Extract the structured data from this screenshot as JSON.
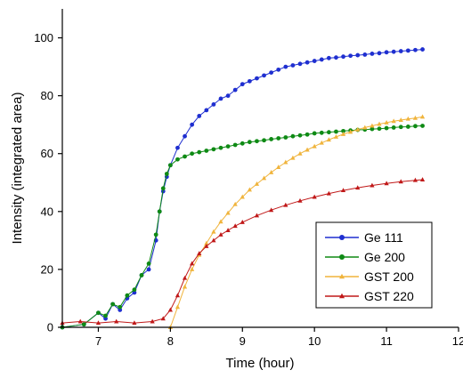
{
  "chart_data": {
    "type": "scatter",
    "title": "",
    "xlabel": "Time (hour)",
    "ylabel": "Intensity (integrated area)",
    "xlim": [
      6.5,
      12
    ],
    "ylim": [
      0,
      110
    ],
    "xticks": [
      "7",
      "8",
      "9",
      "10",
      "11",
      "12"
    ],
    "yticks": [
      "0",
      "20",
      "40",
      "60",
      "80",
      "100"
    ],
    "grid": false,
    "legend_position": "bottom-right",
    "series": [
      {
        "name": "Ge 111",
        "color": "#1f2fd0",
        "marker": "circle",
        "x": [
          6.5,
          6.8,
          7.0,
          7.1,
          7.2,
          7.3,
          7.4,
          7.5,
          7.6,
          7.7,
          7.8,
          7.85,
          7.9,
          7.95,
          8.0,
          8.1,
          8.2,
          8.3,
          8.4,
          8.5,
          8.6,
          8.7,
          8.8,
          8.9,
          9.0,
          9.1,
          9.2,
          9.3,
          9.4,
          9.5,
          9.6,
          9.7,
          9.8,
          9.9,
          10.0,
          10.1,
          10.2,
          10.3,
          10.4,
          10.5,
          10.6,
          10.7,
          10.8,
          10.9,
          11.0,
          11.1,
          11.2,
          11.3,
          11.4,
          11.5
        ],
        "y": [
          0,
          1,
          5,
          3,
          8,
          6,
          10,
          12,
          18,
          20,
          30,
          40,
          47,
          52,
          56,
          62,
          66,
          70,
          73,
          75,
          77,
          79,
          80,
          82,
          84,
          85,
          86,
          87,
          88,
          89,
          90,
          90.5,
          91,
          91.5,
          92,
          92.5,
          93,
          93.2,
          93.5,
          93.8,
          94,
          94.2,
          94.5,
          94.7,
          95,
          95.2,
          95.4,
          95.6,
          95.8,
          96
        ]
      },
      {
        "name": "Ge 200",
        "color": "#0e8a14",
        "marker": "circle",
        "x": [
          6.5,
          6.8,
          7.0,
          7.1,
          7.2,
          7.3,
          7.4,
          7.5,
          7.6,
          7.7,
          7.8,
          7.85,
          7.9,
          7.95,
          8.0,
          8.1,
          8.2,
          8.3,
          8.4,
          8.5,
          8.6,
          8.7,
          8.8,
          8.9,
          9.0,
          9.1,
          9.2,
          9.3,
          9.4,
          9.5,
          9.6,
          9.7,
          9.8,
          9.9,
          10.0,
          10.1,
          10.2,
          10.3,
          10.4,
          10.5,
          10.6,
          10.7,
          10.8,
          10.9,
          11.0,
          11.1,
          11.2,
          11.3,
          11.4,
          11.5
        ],
        "y": [
          0,
          1,
          5,
          4,
          8,
          7,
          11,
          13,
          18,
          22,
          32,
          40,
          48,
          53,
          56,
          58,
          59,
          60,
          60.5,
          61,
          61.5,
          62,
          62.5,
          63,
          63.5,
          64,
          64.3,
          64.6,
          65,
          65.3,
          65.6,
          66,
          66.3,
          66.6,
          67,
          67.2,
          67.4,
          67.6,
          67.8,
          68,
          68.2,
          68.3,
          68.5,
          68.6,
          68.8,
          69,
          69.2,
          69.3,
          69.5,
          69.6
        ]
      },
      {
        "name": "GST 200",
        "color": "#f0b43c",
        "marker": "triangle",
        "x": [
          8.0,
          8.1,
          8.2,
          8.3,
          8.4,
          8.5,
          8.6,
          8.7,
          8.8,
          8.9,
          9.0,
          9.1,
          9.2,
          9.3,
          9.4,
          9.5,
          9.6,
          9.7,
          9.8,
          9.9,
          10.0,
          10.1,
          10.2,
          10.3,
          10.4,
          10.5,
          10.6,
          10.7,
          10.8,
          10.9,
          11.0,
          11.1,
          11.2,
          11.3,
          11.4,
          11.5
        ],
        "y": [
          0,
          7,
          14,
          20,
          25,
          29,
          33,
          36.5,
          39.5,
          42.5,
          45,
          47.5,
          49.5,
          51.5,
          53.5,
          55.3,
          57,
          58.5,
          60,
          61.3,
          62.5,
          63.7,
          64.8,
          65.8,
          66.7,
          67.5,
          68.3,
          69,
          69.6,
          70.2,
          70.7,
          71.2,
          71.6,
          72,
          72.3,
          72.7
        ]
      },
      {
        "name": "GST 220",
        "color": "#c01818",
        "marker": "triangle",
        "x": [
          6.5,
          6.75,
          7.0,
          7.25,
          7.5,
          7.75,
          7.9,
          8.0,
          8.1,
          8.2,
          8.3,
          8.4,
          8.5,
          8.6,
          8.7,
          8.8,
          8.9,
          9.0,
          9.2,
          9.4,
          9.6,
          9.8,
          10.0,
          10.2,
          10.4,
          10.6,
          10.8,
          11.0,
          11.2,
          11.4,
          11.5
        ],
        "y": [
          1.5,
          2,
          1.5,
          2,
          1.5,
          2,
          3,
          6,
          11,
          17,
          22,
          25.5,
          28,
          30,
          32,
          33.5,
          35,
          36.3,
          38.6,
          40.5,
          42.2,
          43.7,
          45,
          46.2,
          47.3,
          48.2,
          49,
          49.7,
          50.3,
          50.8,
          51
        ]
      }
    ]
  }
}
